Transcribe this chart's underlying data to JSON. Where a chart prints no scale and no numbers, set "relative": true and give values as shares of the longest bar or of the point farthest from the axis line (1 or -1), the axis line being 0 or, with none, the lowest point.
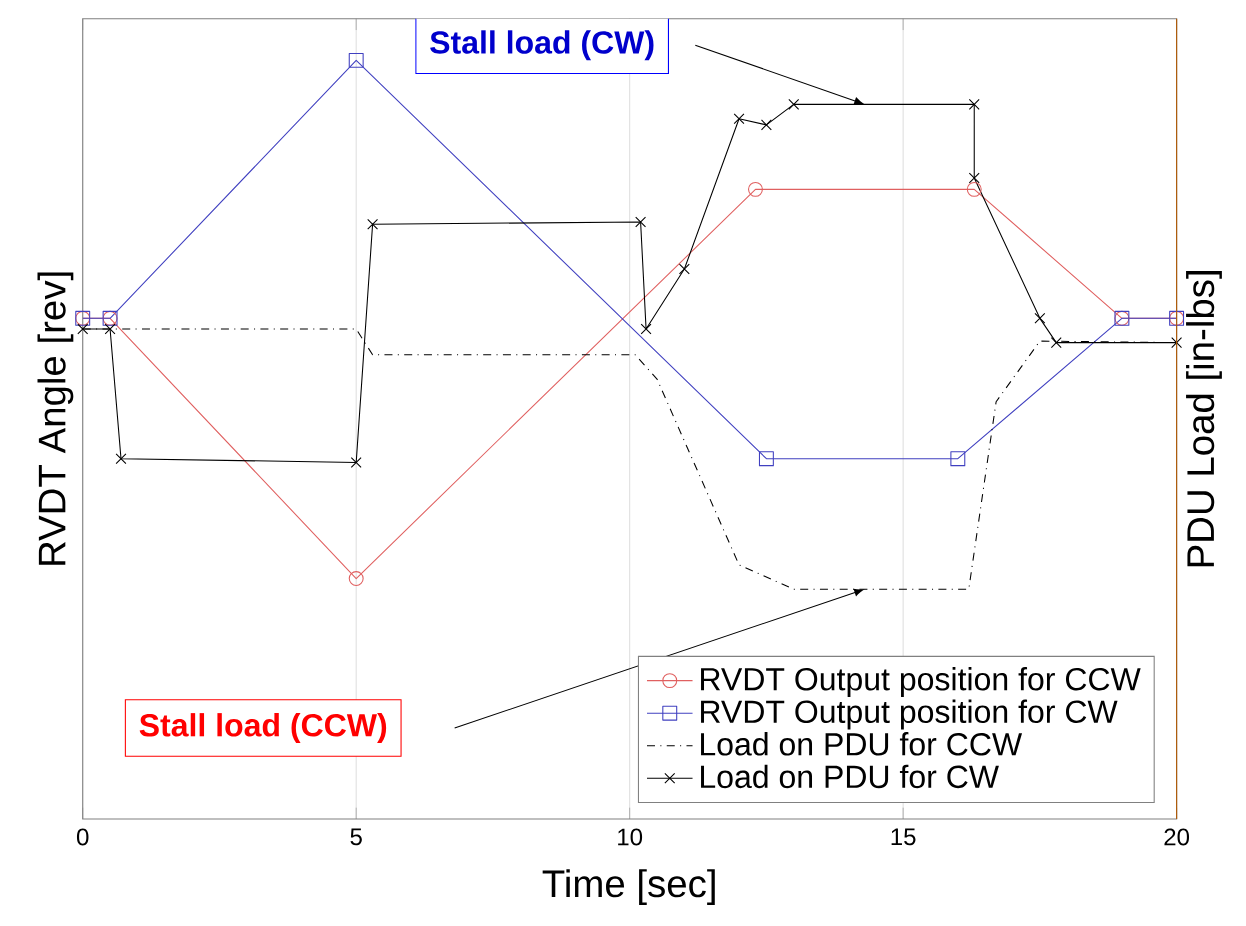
{
  "chart_data": {
    "type": "line",
    "relative": true,
    "xlabel": "Time [sec]",
    "ylabel": "RVDT Angle [rev]",
    "y2label": "PDU Load [in-lbs]",
    "xlim": [
      0,
      20
    ],
    "xticks": [
      0,
      5,
      10,
      15,
      20
    ],
    "grid": "x",
    "legend": "bottom right",
    "series": [
      {
        "name": "RVDT Output position for CCW",
        "color": "#e06060",
        "marker": "circle",
        "line_style": "solid",
        "x": [
          0,
          0.5,
          5,
          12.3,
          16.3,
          19,
          20
        ],
        "values": [
          0.66,
          0.66,
          0.317,
          0.83,
          0.83,
          0.66,
          0.66
        ]
      },
      {
        "name": "RVDT Output position for CW",
        "color": "#4040c0",
        "marker": "square",
        "line_style": "solid",
        "x": [
          0,
          0.5,
          5,
          12.5,
          16,
          19,
          20
        ],
        "values": [
          0.66,
          0.66,
          1,
          0.475,
          0.475,
          0.66,
          0.66
        ]
      },
      {
        "name": "Load on PDU for CCW",
        "color": "#000000",
        "marker": "none",
        "line_style": "dashdot",
        "x": [
          0,
          5,
          5.3,
          10.1,
          10.5,
          12,
          13,
          16.2,
          16.7,
          17.5,
          20
        ],
        "values": [
          0.646,
          0.646,
          0.612,
          0.612,
          0.58,
          0.335,
          0.303,
          0.303,
          0.55,
          0.63,
          0.628
        ]
      },
      {
        "name": "Load on PDU for CW",
        "color": "#000000",
        "marker": "cross",
        "line_style": "solid",
        "x": [
          0,
          0.5,
          0.7,
          5,
          5.3,
          10.2,
          10.3,
          11,
          12,
          12.5,
          13,
          16.3,
          16.3,
          17.5,
          17.8,
          20
        ],
        "values": [
          0.646,
          0.646,
          0.475,
          0.47,
          0.784,
          0.787,
          0.646,
          0.725,
          0.923,
          0.915,
          0.942,
          0.942,
          0.845,
          0.66,
          0.628,
          0.628
        ]
      }
    ],
    "annotations": [
      "Stall load (CW)",
      "Stall load (CCW)"
    ]
  }
}
